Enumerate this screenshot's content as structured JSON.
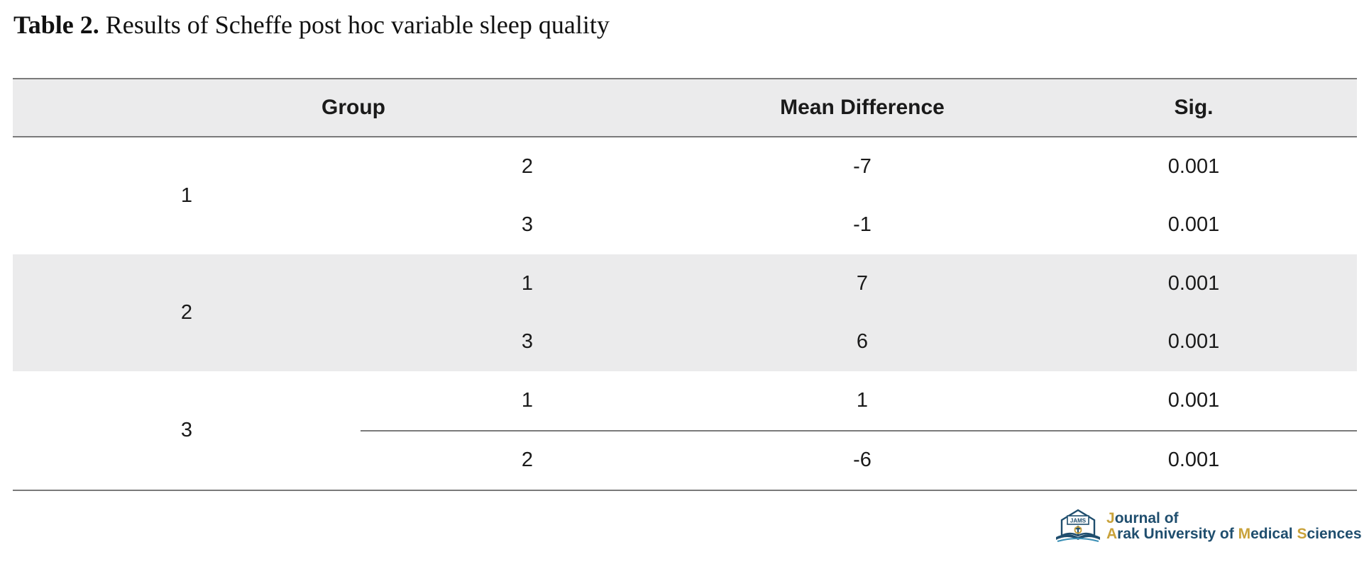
{
  "caption": {
    "label": "Table 2.",
    "text": " Results of Scheffe post hoc variable sleep quality"
  },
  "table": {
    "headers": {
      "group": "Group",
      "mean_difference": "Mean Difference",
      "sig": "Sig."
    },
    "groups": [
      {
        "group": "1",
        "rows": [
          {
            "compare": "2",
            "mean_difference": "-7",
            "sig": "0.001"
          },
          {
            "compare": "3",
            "mean_difference": "-1",
            "sig": "0.001"
          }
        ]
      },
      {
        "group": "2",
        "rows": [
          {
            "compare": "1",
            "mean_difference": "7",
            "sig": "0.001"
          },
          {
            "compare": "3",
            "mean_difference": "6",
            "sig": "0.001"
          }
        ]
      },
      {
        "group": "3",
        "rows": [
          {
            "compare": "1",
            "mean_difference": "1",
            "sig": "0.001"
          },
          {
            "compare": "2",
            "mean_difference": "-6",
            "sig": "0.001"
          }
        ]
      }
    ]
  },
  "logo": {
    "emblem_text": "JAMS",
    "line1": {
      "initial": "J",
      "rest": "ournal of"
    },
    "line2": [
      {
        "initial": "A",
        "rest": "rak University of "
      },
      {
        "initial": "M",
        "rest": "edical "
      },
      {
        "initial": "S",
        "rest": "ciences"
      }
    ]
  },
  "colors": {
    "header_fill": "#ebebec",
    "rule": "#7a7a7a",
    "logo_blue": "#1f4e6e",
    "logo_gold": "#c9a23a"
  }
}
